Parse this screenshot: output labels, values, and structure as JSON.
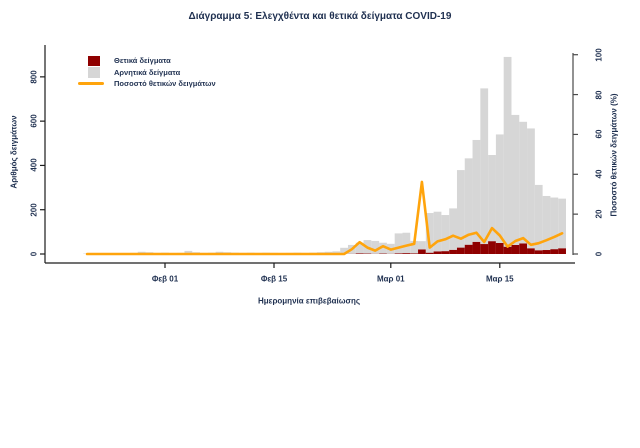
{
  "title": "Διάγραμμα 5: Ελεγχθέντα και θετικά δείγματα COVID-19",
  "legend": {
    "positive": "Θετικά δείγματα",
    "negative": "Αρνητικά δείγματα",
    "percent": "Ποσοστό θετικών δειγμάτων"
  },
  "axes": {
    "left": {
      "title": "Αριθμός δειγμάτων",
      "ticks": [
        0,
        200,
        400,
        600,
        800
      ]
    },
    "right": {
      "title": "Ποσοστό θετικών δειγμάτων (%)",
      "ticks": [
        0,
        20,
        40,
        60,
        80,
        100
      ]
    },
    "x": {
      "title": "Ημερομηνία επιβεβαίωσης",
      "tick_labels": [
        "Φεβ 01",
        "Φεβ 15",
        "Μαρ 01",
        "Μαρ 15"
      ],
      "tick_days_from_feb01": [
        0,
        14,
        29,
        43
      ]
    }
  },
  "colors": {
    "positive_bar": "#8f0000",
    "negative_bar": "#d6d6d6",
    "percent_line": "#ffa40c",
    "text": "#1f3050",
    "axis_left_bottom": "#1c1c1c",
    "axis_right": "#4a4a4a"
  },
  "chart_data": {
    "type": "bar",
    "stacked": true,
    "grid": false,
    "legend_position": "top-left",
    "title": "Διάγραμμα 5: Ελεγχθέντα και θετικά δείγματα COVID-19",
    "xlabel": "Ημερομηνία επιβεβαίωσης",
    "ylabel_left": "Αριθμός δειγμάτων",
    "ylabel_right": "Ποσοστό θετικών δειγμάτων (%)",
    "ylim_left": [
      0,
      900
    ],
    "ylim_right": [
      0,
      100
    ],
    "dates": [
      "2020-01-22",
      "2020-01-23",
      "2020-01-24",
      "2020-01-25",
      "2020-01-26",
      "2020-01-27",
      "2020-01-28",
      "2020-01-29",
      "2020-01-30",
      "2020-01-31",
      "2020-02-01",
      "2020-02-02",
      "2020-02-03",
      "2020-02-04",
      "2020-02-05",
      "2020-02-06",
      "2020-02-07",
      "2020-02-08",
      "2020-02-09",
      "2020-02-10",
      "2020-02-11",
      "2020-02-12",
      "2020-02-13",
      "2020-02-14",
      "2020-02-15",
      "2020-02-16",
      "2020-02-17",
      "2020-02-18",
      "2020-02-19",
      "2020-02-20",
      "2020-02-21",
      "2020-02-22",
      "2020-02-23",
      "2020-02-24",
      "2020-02-25",
      "2020-02-26",
      "2020-02-27",
      "2020-02-28",
      "2020-02-29",
      "2020-03-01",
      "2020-03-02",
      "2020-03-03",
      "2020-03-04",
      "2020-03-05",
      "2020-03-06",
      "2020-03-07",
      "2020-03-08",
      "2020-03-09",
      "2020-03-10",
      "2020-03-11",
      "2020-03-12",
      "2020-03-13",
      "2020-03-14",
      "2020-03-15",
      "2020-03-16",
      "2020-03-17",
      "2020-03-18",
      "2020-03-19",
      "2020-03-20",
      "2020-03-21",
      "2020-03-22",
      "2020-03-23"
    ],
    "series": [
      {
        "name": "Θετικά δείγματα",
        "color": "#8f0000",
        "values": [
          0,
          0,
          0,
          0,
          0,
          0,
          0,
          0,
          0,
          0,
          0,
          0,
          0,
          0,
          0,
          0,
          0,
          0,
          0,
          0,
          0,
          0,
          0,
          0,
          0,
          0,
          0,
          0,
          0,
          0,
          0,
          0,
          0,
          0,
          1,
          3,
          2,
          1,
          2,
          1,
          3,
          4,
          3,
          21,
          6,
          12,
          13,
          19,
          29,
          42,
          55,
          45,
          58,
          50,
          33,
          41,
          48,
          26,
          17,
          18,
          22,
          26
        ]
      },
      {
        "name": "Αρνητικά δείγματα",
        "color": "#d6d6d6",
        "values": [
          2,
          2,
          3,
          2,
          3,
          4,
          5,
          10,
          8,
          5,
          6,
          4,
          5,
          14,
          8,
          5,
          6,
          10,
          8,
          6,
          5,
          6,
          5,
          6,
          5,
          4,
          5,
          6,
          5,
          6,
          8,
          10,
          12,
          28,
          40,
          48,
          61,
          58,
          49,
          45,
          90,
          92,
          56,
          37,
          179,
          179,
          163,
          187,
          350,
          390,
          460,
          703,
          389,
          490,
          857,
          587,
          549,
          541,
          295,
          244,
          233,
          224
        ]
      }
    ],
    "line_overlay": {
      "name": "Ποσοστό θετικών δειγμάτων",
      "color": "#ffa40c",
      "axis": "right",
      "values": [
        0,
        0,
        0,
        0,
        0,
        0,
        0,
        0,
        0,
        0,
        0,
        0,
        0,
        0,
        0,
        0,
        0,
        0,
        0,
        0,
        0,
        0,
        0,
        0,
        0,
        0,
        0,
        0,
        0,
        0,
        0,
        0,
        0,
        0,
        2.4,
        5.9,
        3.2,
        1.7,
        3.9,
        2.2,
        3.2,
        4.2,
        5.1,
        36.2,
        3.2,
        6.3,
        7.4,
        9.2,
        7.7,
        9.7,
        10.7,
        6.0,
        13.0,
        9.3,
        3.7,
        6.5,
        8.0,
        4.6,
        5.4,
        6.9,
        8.6,
        10.4
      ]
    }
  }
}
